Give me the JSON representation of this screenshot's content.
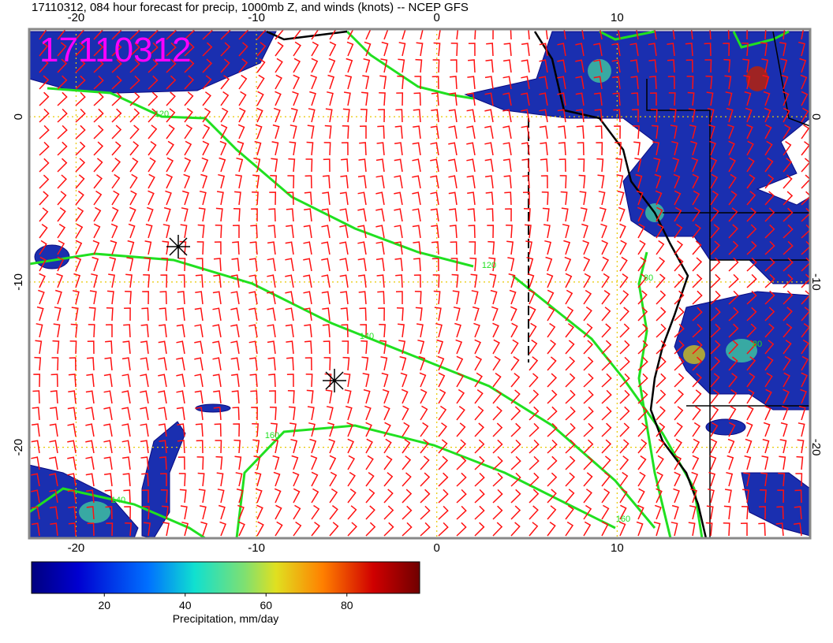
{
  "title": "17110312, 084 hour forecast for precip, 1000mb Z, and winds (knots) -- NCEP GFS",
  "stamp": "17110312",
  "map": {
    "xlim": [
      -22.6,
      20.7
    ],
    "ylim": [
      -25.5,
      5.3
    ],
    "xticks": [
      -20,
      -10,
      0,
      10
    ],
    "yticks": [
      0,
      -10,
      -20
    ]
  },
  "contour_labels": [
    "120",
    "120",
    "140",
    "160",
    "160",
    "140",
    "80",
    "80"
  ],
  "colorbar": {
    "lim": [
      2,
      98
    ],
    "ticks": [
      20,
      40,
      60,
      80
    ],
    "label": "Precipitation, mm/day"
  }
}
